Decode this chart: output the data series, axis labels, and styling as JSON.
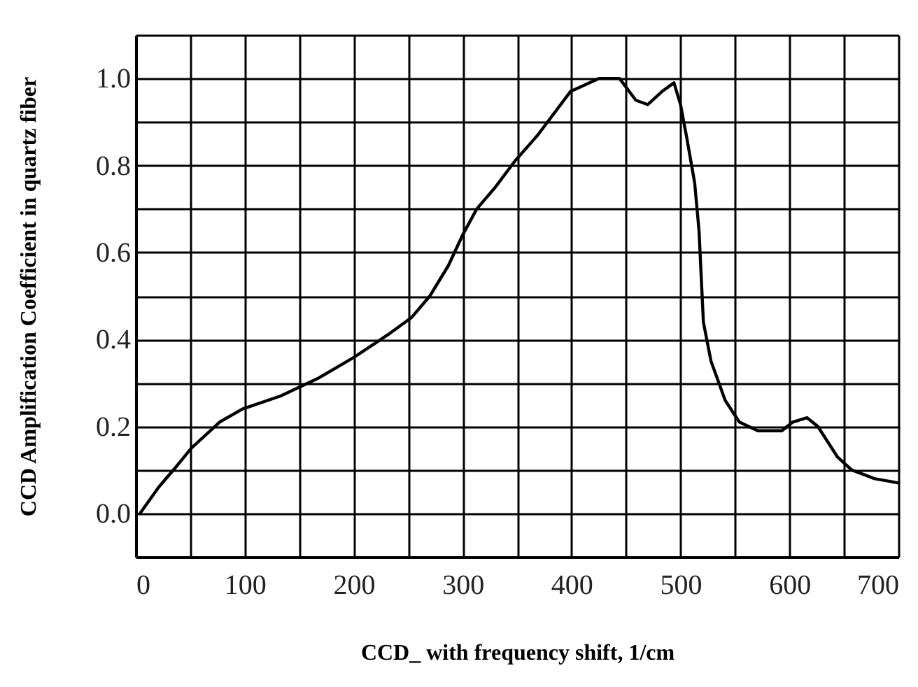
{
  "chart_data": {
    "type": "line",
    "xlabel": "CCD_ with frequency shift, 1/cm",
    "ylabel": "CCD  Amplification Coefficient in quartz fiber",
    "x": [
      4,
      21,
      38,
      51,
      77,
      98,
      133,
      167,
      201,
      231,
      253,
      270,
      287,
      300,
      313,
      330,
      348,
      369,
      399,
      425,
      444,
      459,
      470,
      483,
      494,
      500,
      506,
      513,
      517,
      521,
      528,
      541,
      554,
      571,
      593,
      603,
      616,
      626,
      644,
      657,
      678,
      700
    ],
    "series": [
      {
        "color": "#000000",
        "values": [
          0.0,
          0.06,
          0.11,
          0.15,
          0.21,
          0.24,
          0.27,
          0.31,
          0.36,
          0.41,
          0.45,
          0.5,
          0.57,
          0.64,
          0.7,
          0.75,
          0.81,
          0.87,
          0.97,
          1.0,
          1.0,
          0.95,
          0.94,
          0.97,
          0.99,
          0.94,
          0.86,
          0.76,
          0.65,
          0.44,
          0.35,
          0.26,
          0.21,
          0.19,
          0.19,
          0.21,
          0.22,
          0.2,
          0.13,
          0.1,
          0.08,
          0.07
        ]
      }
    ],
    "xlim": [
      0,
      700
    ],
    "xticks": [
      0,
      {
        "value": 50,
        "label": null
      },
      100,
      {
        "value": 150,
        "label": null
      },
      200,
      {
        "value": 250,
        "label": null
      },
      300,
      {
        "value": 350,
        "label": null
      },
      400,
      {
        "value": 450,
        "label": null
      },
      500,
      {
        "value": 550,
        "label": null
      },
      600,
      {
        "value": 650,
        "label": null
      },
      700
    ],
    "ylim": [
      -0.1,
      1.1
    ],
    "yticks": [
      {
        "value": -0.1,
        "label": null
      },
      {
        "value": 0.0,
        "label": "0.0"
      },
      {
        "value": 0.1,
        "label": null
      },
      {
        "value": 0.2,
        "label": "0.2"
      },
      {
        "value": 0.3,
        "label": null
      },
      {
        "value": 0.4,
        "label": "0.4"
      },
      {
        "value": 0.5,
        "label": null
      },
      {
        "value": 0.6,
        "label": "0.6"
      },
      {
        "value": 0.7,
        "label": null
      },
      {
        "value": 0.8,
        "label": "0.8"
      },
      {
        "value": 0.9,
        "label": null
      },
      {
        "value": 1.0,
        "label": "1.0"
      },
      {
        "value": 1.1,
        "label": null
      }
    ],
    "grid": true,
    "marker": "none",
    "line_style": "solid"
  }
}
